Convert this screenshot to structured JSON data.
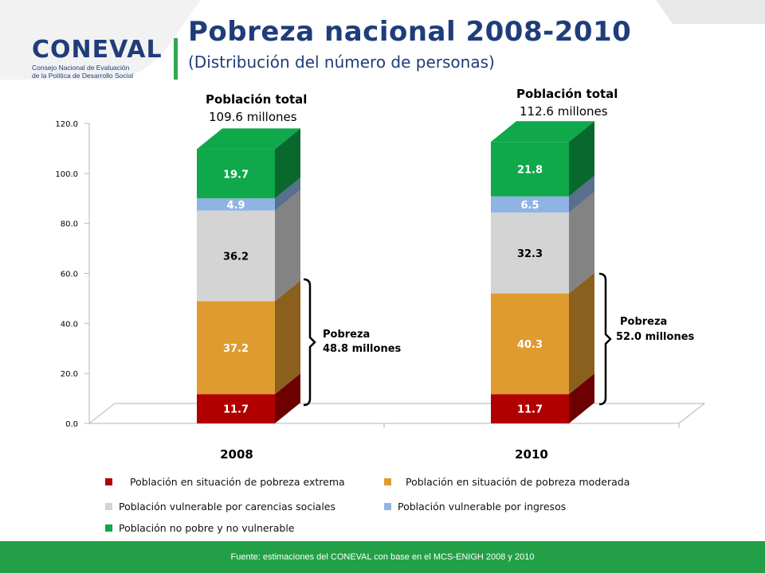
{
  "header": {
    "logo_word": "CONEVAL",
    "logo_line1": "Consejo Nacional de Evaluación",
    "logo_line2": "de la Política de Desarrollo Social",
    "title": "Pobreza nacional 2008-2010",
    "subtitle": "(Distribución del número de personas)"
  },
  "chart_data": {
    "type": "bar",
    "stacked": true,
    "categories": [
      "2008",
      "2010"
    ],
    "ylim": [
      0,
      120
    ],
    "yticks": [
      "0.0",
      "20.0",
      "40.0",
      "60.0",
      "80.0",
      "100.0",
      "120.0"
    ],
    "series": [
      {
        "name": "Población en situación de pobreza extrema",
        "values": [
          11.7,
          11.7
        ],
        "labels": [
          "11.7",
          "11.7"
        ],
        "color": "#b00000"
      },
      {
        "name": "Población en situación de pobreza moderada",
        "values": [
          37.2,
          40.3
        ],
        "labels": [
          "37.2",
          "40.3"
        ],
        "color": "#e09b30"
      },
      {
        "name": "Población vulnerable por carencias sociales",
        "values": [
          36.2,
          32.3
        ],
        "labels": [
          "36.2",
          "32.3"
        ],
        "color": "#d4d4d4"
      },
      {
        "name": "Población vulnerable por ingresos",
        "values": [
          4.9,
          6.5
        ],
        "labels": [
          "4.9",
          "6.5"
        ],
        "color": "#8fb4e3"
      },
      {
        "name": "Población no pobre  y no vulnerable",
        "values": [
          19.7,
          21.8
        ],
        "labels": [
          "19.7",
          "21.8"
        ],
        "color": "#0fa84a"
      }
    ],
    "annotations": [
      {
        "category": "2008",
        "total_label": "Población total",
        "total_value": "109.6 millones",
        "bracket_label": "Pobreza",
        "bracket_value": "48.8 millones"
      },
      {
        "category": "2010",
        "total_label": "Población total",
        "total_value": "112.6 millones",
        "bracket_label": "Pobreza",
        "bracket_value": "52.0 millones"
      }
    ]
  },
  "footer": {
    "source": "Fuente: estimaciones del CONEVAL con base en el MCS-ENIGH 2008 y 2010"
  }
}
